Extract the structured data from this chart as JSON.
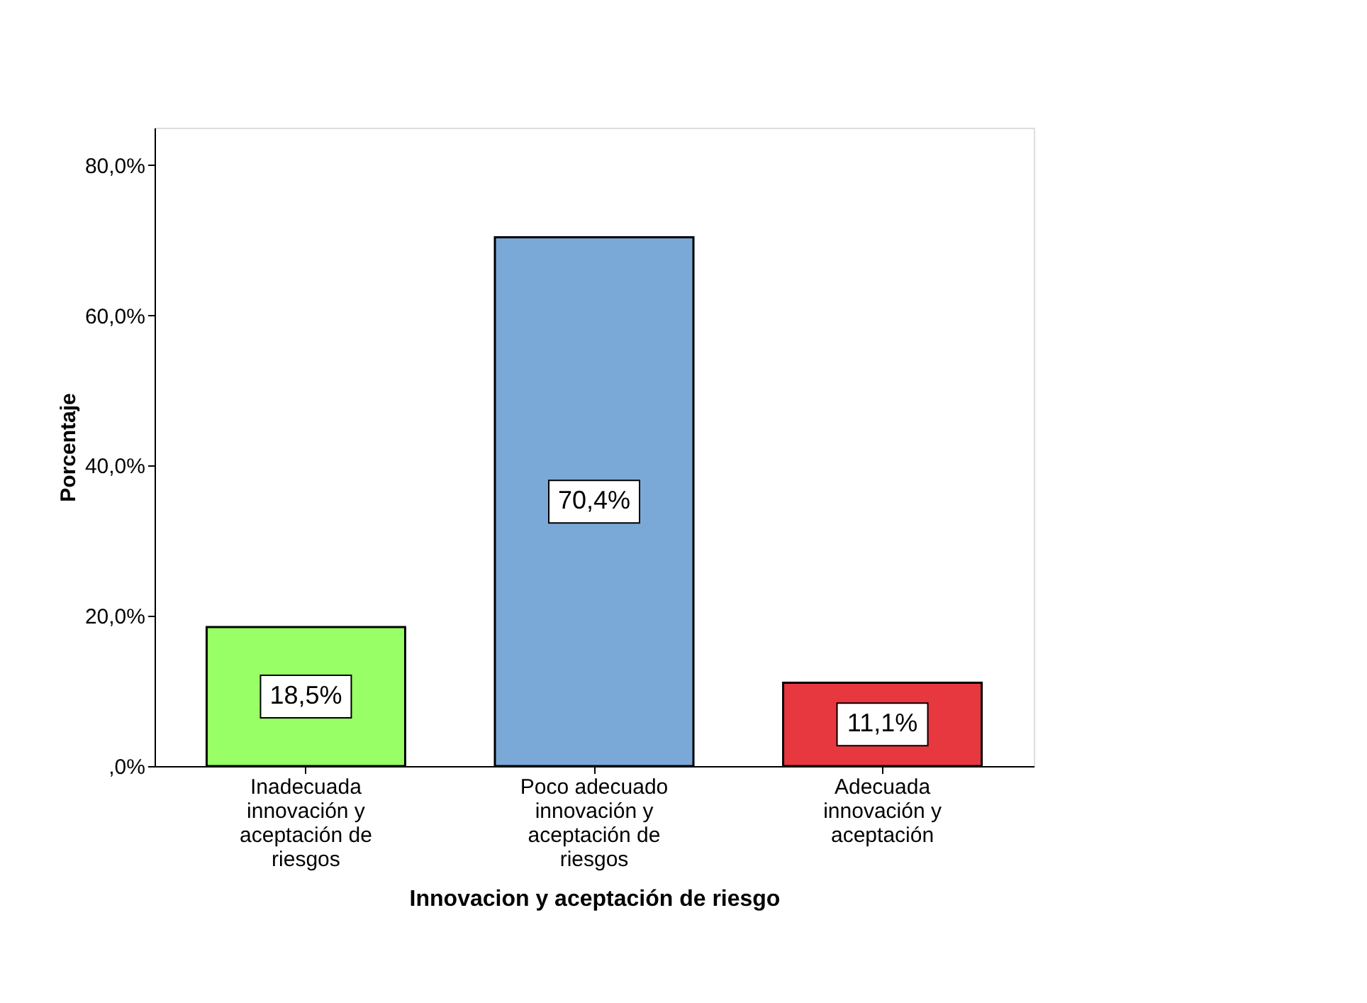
{
  "chart_data": {
    "type": "bar",
    "xlabel": "Innovacion y aceptación de riesgo",
    "ylabel": "Porcentaje",
    "categories": [
      "Inadecuada innovación y aceptación de riesgos",
      "Poco adecuado innovación y aceptación de riesgos",
      "Adecuada innovación y aceptación"
    ],
    "values": [
      18.5,
      70.4,
      11.1
    ],
    "colors": [
      "#99ff66",
      "#7aa9d8",
      "#e8383f"
    ],
    "value_labels": [
      "18,5%",
      "70,4%",
      "11,1%"
    ],
    "ylim": [
      0,
      85
    ],
    "yticks": [
      {
        "value": 0,
        "label": ",0%"
      },
      {
        "value": 20,
        "label": "20,0%"
      },
      {
        "value": 40,
        "label": "40,0%"
      },
      {
        "value": 60,
        "label": "60,0%"
      },
      {
        "value": 80,
        "label": "80,0%"
      }
    ],
    "grid": false
  }
}
